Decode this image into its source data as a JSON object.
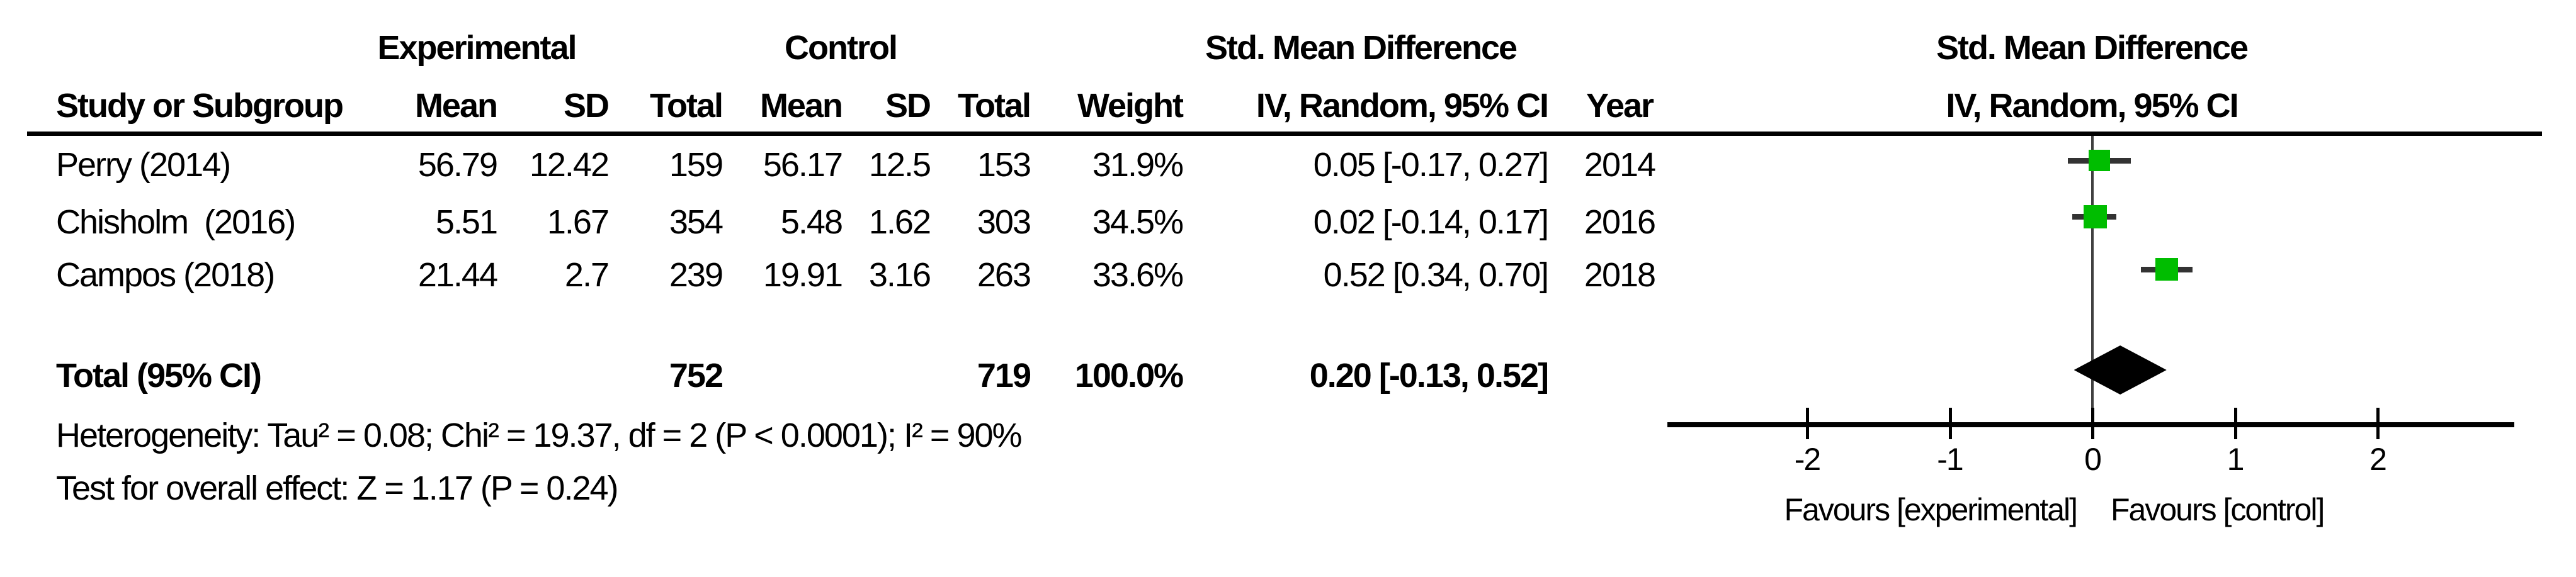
{
  "table": {
    "group_headers": {
      "experimental": "Experimental",
      "control": "Control",
      "smd": "Std. Mean Difference"
    },
    "col_headers": {
      "study": "Study or Subgroup",
      "mean": "Mean",
      "sd": "SD",
      "total": "Total",
      "weight": "Weight",
      "ci": "IV, Random, 95% CI",
      "year": "Year"
    },
    "rows": [
      {
        "study": "Perry (2014)",
        "mean_e": "56.79",
        "sd_e": "12.42",
        "total_e": "159",
        "mean_c": "56.17",
        "sd_c": "12.5",
        "total_c": "153",
        "weight": "31.9%",
        "ci": "0.05 [-0.17, 0.27]",
        "year": "2014"
      },
      {
        "study": "Chisholm  (2016)",
        "mean_e": "5.51",
        "sd_e": "1.67",
        "total_e": "354",
        "mean_c": "5.48",
        "sd_c": "1.62",
        "total_c": "303",
        "weight": "34.5%",
        "ci": "0.02 [-0.14, 0.17]",
        "year": "2016"
      },
      {
        "study": "Campos (2018)",
        "mean_e": "21.44",
        "sd_e": "2.7",
        "total_e": "239",
        "mean_c": "19.91",
        "sd_c": "3.16",
        "total_c": "263",
        "weight": "33.6%",
        "ci": "0.52 [0.34, 0.70]",
        "year": "2018"
      }
    ],
    "total_row": {
      "label": "Total (95% CI)",
      "total_e": "752",
      "total_c": "719",
      "weight": "100.0%",
      "ci": "0.20 [-0.13, 0.52]"
    },
    "heterogeneity": "Heterogeneity: Tau² = 0.08; Chi² = 19.37, df = 2 (P < 0.0001); I² = 90%",
    "overall_effect": "Test for overall effect: Z = 1.17 (P = 0.24)"
  },
  "plot": {
    "header_line1": "Std. Mean Difference",
    "header_line2": "IV, Random, 95% CI",
    "axis_ticks": [
      -2,
      -1,
      0,
      1,
      2
    ],
    "favours_left": "Favours [experimental]",
    "favours_right": "Favours [control]",
    "colors": {
      "marker_green": "#00bd00",
      "diamond": "#000000",
      "ci_line": "#333333",
      "zero_line": "#404040",
      "axis": "#000000"
    }
  },
  "chart_data": {
    "type": "forest",
    "title": "Std. Mean Difference — IV, Random, 95% CI",
    "x_axis": {
      "ticks": [
        -2,
        -1,
        0,
        1,
        2
      ],
      "range_shown": [
        -2.5,
        2.5
      ],
      "label_left": "Favours [experimental]",
      "label_right": "Favours [control]"
    },
    "studies": [
      {
        "name": "Perry (2014)",
        "year": 2014,
        "smd": 0.05,
        "ci_low": -0.17,
        "ci_high": 0.27,
        "weight_pct": 31.9,
        "experimental": {
          "mean": 56.79,
          "sd": 12.42,
          "total": 159
        },
        "control": {
          "mean": 56.17,
          "sd": 12.5,
          "total": 153
        }
      },
      {
        "name": "Chisholm (2016)",
        "year": 2016,
        "smd": 0.02,
        "ci_low": -0.14,
        "ci_high": 0.17,
        "weight_pct": 34.5,
        "experimental": {
          "mean": 5.51,
          "sd": 1.67,
          "total": 354
        },
        "control": {
          "mean": 5.48,
          "sd": 1.62,
          "total": 303
        }
      },
      {
        "name": "Campos (2018)",
        "year": 2018,
        "smd": 0.52,
        "ci_low": 0.34,
        "ci_high": 0.7,
        "weight_pct": 33.6,
        "experimental": {
          "mean": 21.44,
          "sd": 2.7,
          "total": 239
        },
        "control": {
          "mean": 19.91,
          "sd": 3.16,
          "total": 263
        }
      }
    ],
    "total": {
      "label": "Total (95% CI)",
      "smd": 0.2,
      "ci_low": -0.13,
      "ci_high": 0.52,
      "total_experimental": 752,
      "total_control": 719,
      "weight_pct": 100.0
    },
    "heterogeneity": {
      "tau2": 0.08,
      "chi2": 19.37,
      "df": 2,
      "p": "< 0.0001",
      "i2_pct": 90
    },
    "overall_effect": {
      "z": 1.17,
      "p": 0.24
    }
  }
}
